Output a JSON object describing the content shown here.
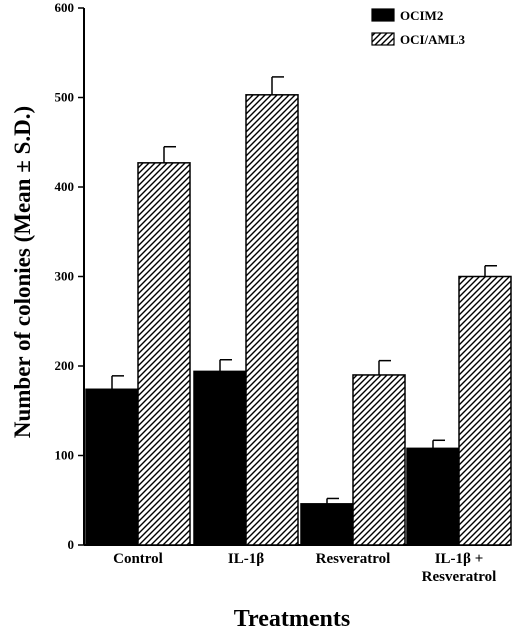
{
  "chart_data": {
    "type": "bar",
    "title": "",
    "xlabel": "Treatments",
    "ylabel": "Number of colonies (Mean ± S.D.)",
    "ylim": [
      0,
      600
    ],
    "yticks": [
      0,
      100,
      200,
      300,
      400,
      500,
      600
    ],
    "categories": [
      [
        "Control"
      ],
      [
        "IL-1β"
      ],
      [
        "Resveratrol"
      ],
      [
        "IL-1β +",
        "Resveratrol"
      ]
    ],
    "series": [
      {
        "name": "OCIM2",
        "fill": "solid",
        "color": "#000000",
        "values": [
          174,
          194,
          46,
          108
        ],
        "errors": [
          15,
          13,
          6,
          9
        ]
      },
      {
        "name": "OCI/AML3",
        "fill": "hatched",
        "color": "#000000",
        "values": [
          427,
          503,
          190,
          300
        ],
        "errors": [
          18,
          20,
          16,
          12
        ]
      }
    ],
    "legend_position": "top-right",
    "grid": false
  }
}
